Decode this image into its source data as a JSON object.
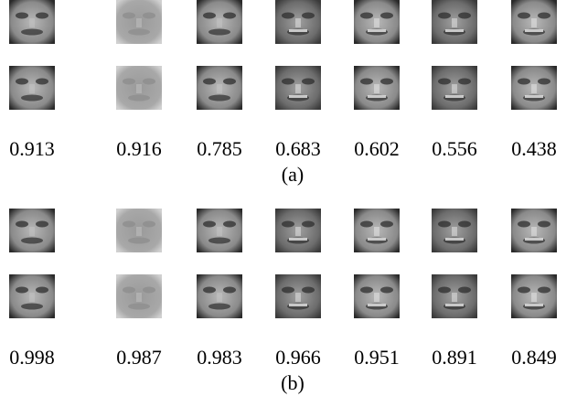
{
  "panels": [
    {
      "values": [
        "0.913",
        "0.916",
        "0.785",
        "0.683",
        "0.602",
        "0.556",
        "0.438"
      ],
      "caption": "(a)"
    },
    {
      "values": [
        "0.998",
        "0.987",
        "0.983",
        "0.966",
        "0.951",
        "0.891",
        "0.849"
      ],
      "caption": "(b)"
    }
  ]
}
